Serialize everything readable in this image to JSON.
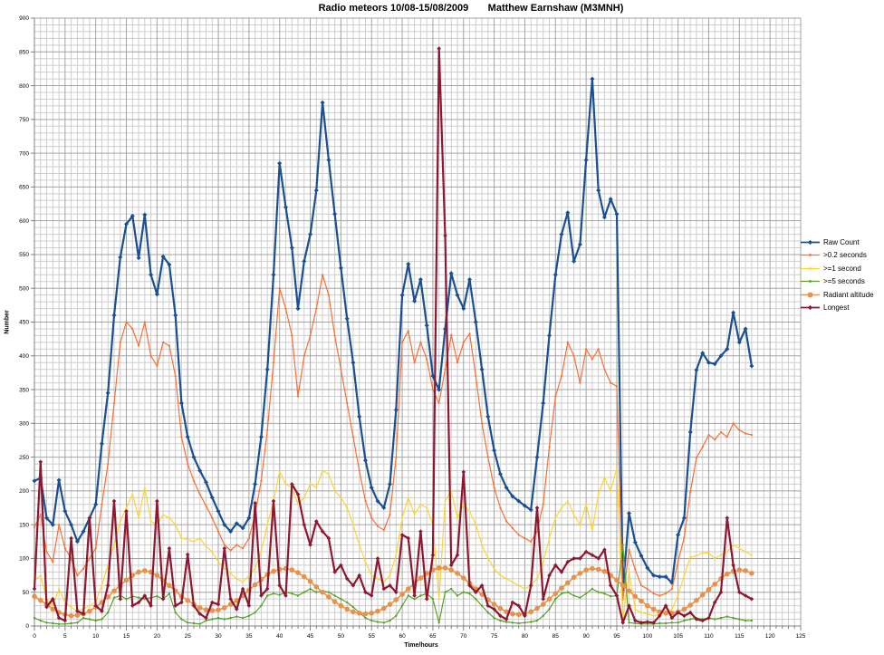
{
  "chart_data": {
    "type": "line",
    "title": "Radio meteors 10/08-15/08/2009       Matthew Earnshaw (M3MNH)",
    "xlabel": "Time/hours",
    "ylabel": "Number",
    "xlim": [
      0,
      125
    ],
    "ylim": [
      0,
      900
    ],
    "x_tick_step": 5,
    "y_tick_step": 50,
    "x_minor_step": 1,
    "y_minor_step": 10,
    "x_ticks": [
      0,
      5,
      10,
      15,
      20,
      25,
      30,
      35,
      40,
      45,
      50,
      55,
      60,
      65,
      70,
      75,
      80,
      85,
      90,
      95,
      100,
      105,
      110,
      115,
      120,
      125
    ],
    "y_ticks": [
      0,
      50,
      100,
      150,
      200,
      250,
      300,
      350,
      400,
      450,
      500,
      550,
      600,
      650,
      700,
      750,
      800,
      850,
      900
    ],
    "grid": "on",
    "legend_position": "right",
    "x_start": 0,
    "x_step": 1,
    "colors": {
      "raw_count": "#1A4F91",
      "gt02": "#FA6E32",
      "ge1": "#FFD32E",
      "ge5": "#58A028",
      "radiant": "#E8914A",
      "longest": "#8E1730",
      "grid_minor": "#cdcdcd",
      "grid_major": "#a3a3a3",
      "axis": "#808080"
    },
    "series": [
      {
        "name": "Raw Count",
        "color": "#1A4F91",
        "width": 2.2,
        "marker": "diamond",
        "msize": 2.5,
        "values": [
          215,
          219,
          160,
          150,
          216,
          170,
          150,
          125,
          140,
          160,
          180,
          270,
          345,
          460,
          546,
          595,
          607,
          545,
          609,
          520,
          491,
          547,
          535,
          460,
          330,
          280,
          250,
          230,
          213,
          190,
          170,
          150,
          140,
          152,
          145,
          160,
          210,
          280,
          380,
          520,
          685,
          620,
          560,
          470,
          540,
          580,
          645,
          775,
          690,
          610,
          530,
          455,
          390,
          310,
          245,
          205,
          185,
          175,
          210,
          320,
          490,
          536,
          481,
          513,
          445,
          370,
          350,
          440,
          522,
          490,
          470,
          513,
          450,
          380,
          310,
          260,
          225,
          205,
          192,
          185,
          178,
          172,
          250,
          330,
          430,
          520,
          580,
          612,
          540,
          565,
          690,
          810,
          645,
          605,
          632,
          610,
          53,
          167,
          124,
          104,
          86,
          75,
          73,
          73,
          64,
          135,
          160,
          287,
          379,
          404,
          390,
          388,
          400,
          410,
          464,
          420,
          440,
          385
        ]
      },
      {
        "name": ">0.2 seconds",
        "color": "#FA6E32",
        "width": 1.2,
        "marker": "dot",
        "msize": 1.1,
        "values": [
          146,
          165,
          110,
          95,
          150,
          115,
          100,
          75,
          85,
          100,
          115,
          180,
          240,
          330,
          420,
          450,
          440,
          415,
          450,
          400,
          385,
          420,
          415,
          370,
          280,
          240,
          215,
          195,
          178,
          160,
          140,
          120,
          112,
          120,
          115,
          130,
          165,
          215,
          290,
          390,
          500,
          470,
          430,
          340,
          400,
          430,
          470,
          520,
          490,
          430,
          380,
          330,
          280,
          230,
          185,
          160,
          148,
          142,
          165,
          250,
          420,
          437,
          390,
          420,
          395,
          350,
          330,
          380,
          431,
          390,
          420,
          433,
          370,
          300,
          250,
          205,
          175,
          155,
          145,
          135,
          130,
          125,
          140,
          180,
          265,
          340,
          370,
          420,
          400,
          360,
          410,
          395,
          410,
          380,
          360,
          355,
          39,
          113,
          84,
          60,
          55,
          48,
          45,
          48,
          55,
          95,
          131,
          198,
          249,
          265,
          283,
          276,
          287,
          280,
          300,
          290,
          285,
          283
        ]
      },
      {
        "name": ">=1 second",
        "color": "#FFD32E",
        "width": 1.2,
        "marker": "dot",
        "msize": 1.0,
        "values": [
          68,
          75,
          40,
          30,
          55,
          35,
          28,
          22,
          25,
          30,
          35,
          60,
          90,
          120,
          155,
          175,
          195,
          160,
          205,
          155,
          150,
          165,
          160,
          150,
          130,
          128,
          125,
          130,
          118,
          110,
          95,
          85,
          78,
          70,
          65,
          75,
          85,
          110,
          150,
          185,
          229,
          210,
          205,
          180,
          190,
          210,
          205,
          230,
          225,
          200,
          190,
          175,
          150,
          120,
          95,
          75,
          70,
          65,
          75,
          105,
          160,
          190,
          165,
          180,
          175,
          150,
          40,
          185,
          200,
          160,
          180,
          170,
          150,
          120,
          100,
          85,
          75,
          70,
          65,
          60,
          55,
          60,
          70,
          95,
          130,
          160,
          175,
          185,
          165,
          149,
          180,
          142,
          195,
          220,
          200,
          234,
          10,
          80,
          25,
          20,
          18,
          15,
          18,
          20,
          25,
          45,
          75,
          102,
          104,
          108,
          108,
          100,
          105,
          110,
          120,
          115,
          110,
          105
        ]
      },
      {
        "name": ">=5 seconds",
        "color": "#58A028",
        "width": 1.2,
        "marker": "dot",
        "msize": 1.2,
        "values": [
          12,
          8,
          5,
          4,
          3,
          3,
          4,
          5,
          12,
          10,
          8,
          10,
          20,
          42,
          45,
          40,
          44,
          42,
          40,
          42,
          44,
          40,
          48,
          20,
          10,
          5,
          4,
          3,
          8,
          10,
          12,
          10,
          12,
          14,
          12,
          15,
          20,
          30,
          45,
          48,
          46,
          50,
          48,
          45,
          50,
          55,
          50,
          52,
          50,
          45,
          40,
          35,
          28,
          20,
          12,
          8,
          6,
          5,
          8,
          15,
          30,
          45,
          40,
          45,
          48,
          40,
          5,
          50,
          55,
          45,
          50,
          48,
          40,
          30,
          20,
          12,
          8,
          6,
          5,
          4,
          5,
          6,
          8,
          15,
          25,
          40,
          48,
          50,
          45,
          42,
          48,
          55,
          50,
          48,
          44,
          45,
          120,
          5,
          4,
          3,
          3,
          3,
          4,
          4,
          5,
          5,
          8,
          10,
          12,
          10,
          12,
          10,
          12,
          14,
          12,
          10,
          8,
          8
        ]
      },
      {
        "name": "Radiant altitude",
        "color": "#E8914A",
        "width": 1.6,
        "marker": "circle",
        "msize": 2.8,
        "values": [
          44,
          38,
          32,
          25,
          20,
          17,
          15,
          16,
          18,
          22,
          28,
          35,
          43,
          52,
          60,
          68,
          75,
          80,
          82,
          80,
          75,
          68,
          60,
          52,
          44,
          38,
          32,
          27,
          24,
          23,
          24,
          27,
          32,
          38,
          45,
          53,
          61,
          69,
          76,
          81,
          84,
          85,
          83,
          79,
          73,
          66,
          58,
          50,
          43,
          36,
          30,
          25,
          21,
          19,
          18,
          19,
          22,
          26,
          32,
          39,
          47,
          55,
          63,
          71,
          78,
          83,
          86,
          86,
          83,
          78,
          71,
          63,
          55,
          47,
          39,
          32,
          26,
          21,
          18,
          17,
          18,
          21,
          26,
          32,
          40,
          48,
          56,
          64,
          72,
          78,
          83,
          85,
          84,
          81,
          75,
          68,
          60,
          52,
          44,
          37,
          30,
          25,
          21,
          19,
          19,
          21,
          25,
          31,
          38,
          46,
          54,
          62,
          70,
          77,
          81,
          83,
          82,
          78
        ]
      },
      {
        "name": "Longest",
        "color": "#8E1730",
        "width": 2.2,
        "marker": "diamond",
        "msize": 2.3,
        "values": [
          55,
          243,
          28,
          40,
          12,
          8,
          130,
          22,
          18,
          160,
          30,
          22,
          60,
          185,
          40,
          170,
          30,
          35,
          45,
          30,
          185,
          40,
          115,
          30,
          35,
          106,
          30,
          18,
          12,
          35,
          32,
          115,
          40,
          25,
          55,
          30,
          182,
          45,
          55,
          185,
          60,
          45,
          210,
          195,
          150,
          120,
          155,
          140,
          130,
          80,
          90,
          70,
          60,
          75,
          50,
          45,
          100,
          55,
          60,
          50,
          135,
          130,
          45,
          140,
          40,
          105,
          855,
          578,
          90,
          105,
          228,
          60,
          50,
          60,
          30,
          25,
          15,
          10,
          35,
          30,
          15,
          60,
          175,
          40,
          75,
          90,
          80,
          95,
          100,
          100,
          110,
          105,
          100,
          113,
          60,
          45,
          5,
          30,
          8,
          5,
          6,
          5,
          15,
          30,
          12,
          20,
          15,
          20,
          10,
          8,
          12,
          35,
          50,
          160,
          90,
          50,
          45,
          40
        ]
      }
    ]
  }
}
